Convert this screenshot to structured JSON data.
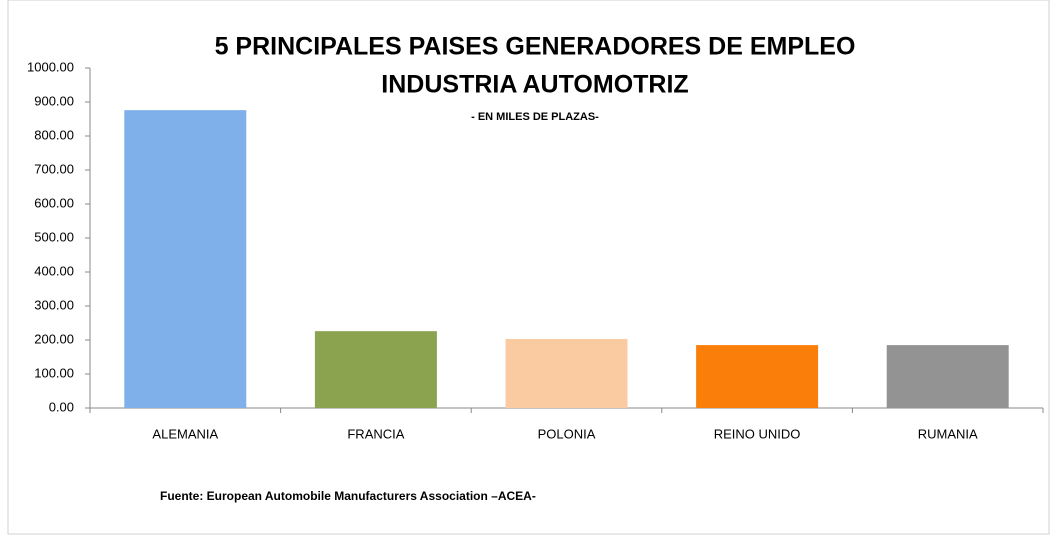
{
  "chart_data": {
    "type": "bar",
    "title": [
      "5 PRINCIPALES PAISES GENERADORES DE EMPLEO",
      "INDUSTRIA AUTOMOTRIZ"
    ],
    "subtitle": "- EN MILES DE PLAZAS-",
    "source": "Fuente: European Automobile Manufacturers Association –ACEA-",
    "categories": [
      "ALEMANIA",
      "FRANCIA",
      "POLONIA",
      "REINO UNIDO",
      "RUMANIA"
    ],
    "values": [
      876,
      226,
      203,
      185,
      185
    ],
    "colors": [
      "#7fb0ea",
      "#8ba34e",
      "#facba1",
      "#fa7f0a",
      "#939393"
    ],
    "ylim": [
      0,
      1000
    ],
    "yticks": [
      {
        "value": 0,
        "label": "0.00"
      },
      {
        "value": 100,
        "label": "100.00"
      },
      {
        "value": 200,
        "label": "200.00"
      },
      {
        "value": 300,
        "label": "300.00"
      },
      {
        "value": 400,
        "label": "400.00"
      },
      {
        "value": 500,
        "label": "500.00"
      },
      {
        "value": 600,
        "label": "600.00"
      },
      {
        "value": 700,
        "label": "700.00"
      },
      {
        "value": 800,
        "label": "800.00"
      },
      {
        "value": 900,
        "label": "900.00"
      },
      {
        "value": 1000,
        "label": "1000.00"
      }
    ],
    "grid": false
  }
}
